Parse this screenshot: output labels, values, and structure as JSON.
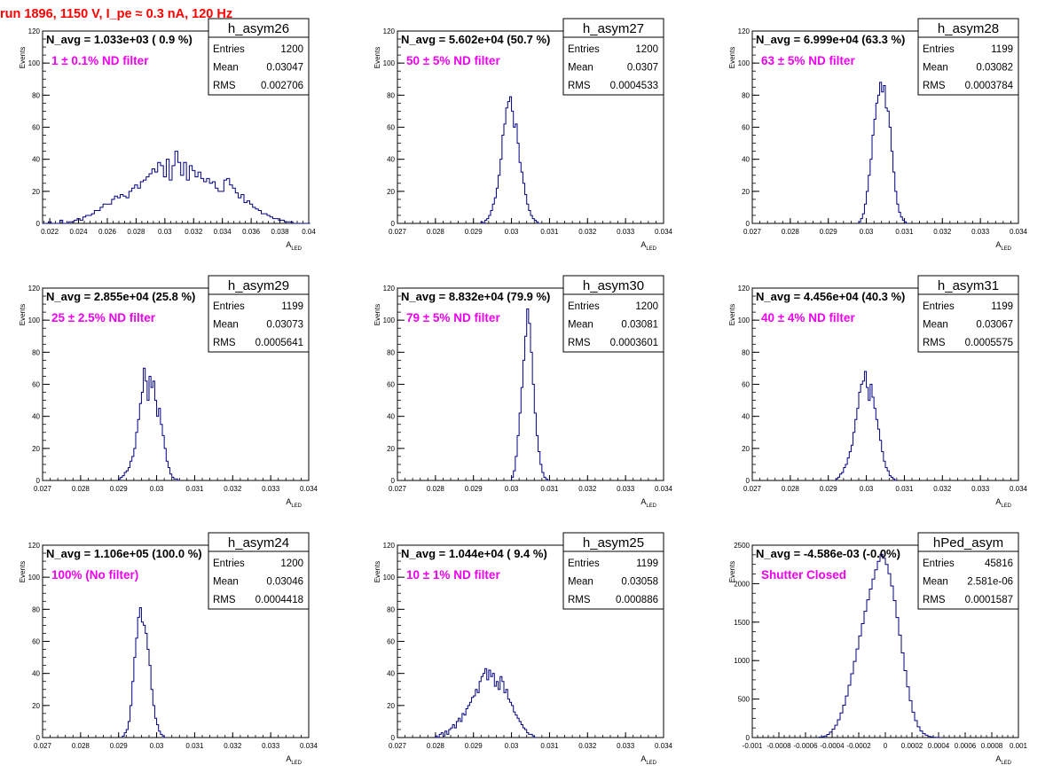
{
  "canvas_title": "run 1896,  1150 V, I_pe ≈ 0.3 nA, 120 Hz",
  "colors": {
    "title": "#ff0000",
    "hist": "#000080",
    "filter_label": "#ee00ee",
    "frame": "#000000"
  },
  "stats_labels": {
    "entries": "Entries",
    "mean": "Mean",
    "rms": "RMS"
  },
  "chart_data": [
    {
      "type": "histogram",
      "name": "h_asym26",
      "xlabel": "A_LED",
      "xlabel_main": "A",
      "xlabel_sub": "LED",
      "ylabel": "Events",
      "xlim": [
        0.0215,
        0.04
      ],
      "ylim": [
        0,
        120
      ],
      "xticks": [
        0.022,
        0.024,
        0.026,
        0.028,
        0.03,
        0.032,
        0.034,
        0.036,
        0.038,
        0.04
      ],
      "xtick_labels": [
        "0.022",
        "0.024",
        "0.026",
        "0.028",
        "0.03",
        "0.032",
        "0.034",
        "0.036",
        "0.038",
        "0.04"
      ],
      "yticks": [
        0,
        20,
        40,
        60,
        80,
        100,
        120
      ],
      "ytick_labels": [
        "0",
        "20",
        "40",
        "60",
        "80",
        "100",
        "120"
      ],
      "navg_text": "N_avg = 1.033e+03 ( 0.9 %)",
      "filter_text": "1 ± 0.1% ND filter",
      "stats": {
        "entries": "1200",
        "mean": "0.03047",
        "rms": "0.002706"
      },
      "bin_start": 0.0215,
      "bin_width": 0.0002,
      "counts": [
        0,
        0,
        1,
        0,
        0,
        0,
        2,
        0,
        0,
        1,
        1,
        2,
        3,
        2,
        4,
        5,
        5,
        6,
        8,
        8,
        10,
        12,
        12,
        12,
        15,
        17,
        16,
        18,
        17,
        16,
        20,
        22,
        24,
        22,
        26,
        27,
        29,
        31,
        34,
        32,
        38,
        36,
        29,
        40,
        27,
        36,
        45,
        38,
        30,
        38,
        27,
        36,
        33,
        29,
        32,
        28,
        26,
        28,
        25,
        26,
        22,
        20,
        20,
        27,
        28,
        24,
        22,
        19,
        16,
        18,
        13,
        14,
        12,
        10,
        9,
        8,
        6,
        6,
        5,
        4,
        3,
        3,
        2,
        2,
        1,
        1,
        1,
        0,
        0,
        0,
        0,
        0,
        0
      ]
    },
    {
      "type": "histogram",
      "name": "h_asym27",
      "xlabel": "A_LED",
      "xlabel_main": "A",
      "xlabel_sub": "LED",
      "ylabel": "Events",
      "xlim": [
        0.027,
        0.034
      ],
      "ylim": [
        0,
        120
      ],
      "xticks": [
        0.027,
        0.028,
        0.029,
        0.03,
        0.031,
        0.032,
        0.033,
        0.034
      ],
      "xtick_labels": [
        "0.027",
        "0.028",
        "0.029",
        "0.03",
        "0.031",
        "0.032",
        "0.033",
        "0.034"
      ],
      "yticks": [
        0,
        20,
        40,
        60,
        80,
        100,
        120
      ],
      "ytick_labels": [
        "0",
        "20",
        "40",
        "60",
        "80",
        "100",
        "120"
      ],
      "navg_text": "N_avg = 5.602e+04 (50.7 %)",
      "filter_text": "50 ± 5% ND filter",
      "stats": {
        "entries": "1200",
        "mean": "0.0307",
        "rms": "0.0004533"
      },
      "bin_start": 0.0292,
      "bin_width": 5e-05,
      "counts": [
        1,
        0,
        2,
        3,
        5,
        8,
        12,
        16,
        22,
        30,
        40,
        55,
        62,
        72,
        76,
        79,
        70,
        60,
        62,
        50,
        38,
        32,
        25,
        18,
        12,
        8,
        5,
        3,
        2,
        1,
        0
      ]
    },
    {
      "type": "histogram",
      "name": "h_asym28",
      "xlabel": "A_LED",
      "xlabel_main": "A",
      "xlabel_sub": "LED",
      "ylabel": "Events",
      "xlim": [
        0.027,
        0.034
      ],
      "ylim": [
        0,
        120
      ],
      "xticks": [
        0.027,
        0.028,
        0.029,
        0.03,
        0.031,
        0.032,
        0.033,
        0.034
      ],
      "xtick_labels": [
        "0.027",
        "0.028",
        "0.029",
        "0.03",
        "0.031",
        "0.032",
        "0.033",
        "0.034"
      ],
      "yticks": [
        0,
        20,
        40,
        60,
        80,
        100,
        120
      ],
      "ytick_labels": [
        "0",
        "20",
        "40",
        "60",
        "80",
        "100",
        "120"
      ],
      "navg_text": "N_avg = 6.999e+04 (63.3 %)",
      "filter_text": "63 ± 5% ND filter",
      "stats": {
        "entries": "1199",
        "mean": "0.03082",
        "rms": "0.0003784"
      },
      "bin_start": 0.0298,
      "bin_width": 5e-05,
      "counts": [
        1,
        3,
        6,
        12,
        20,
        30,
        40,
        55,
        65,
        75,
        80,
        88,
        82,
        86,
        72,
        70,
        60,
        45,
        32,
        20,
        12,
        7,
        4,
        2,
        1,
        0
      ]
    },
    {
      "type": "histogram",
      "name": "h_asym29",
      "xlabel": "A_LED",
      "xlabel_main": "A",
      "xlabel_sub": "LED",
      "ylabel": "Events",
      "xlim": [
        0.027,
        0.034
      ],
      "ylim": [
        0,
        120
      ],
      "xticks": [
        0.027,
        0.028,
        0.029,
        0.03,
        0.031,
        0.032,
        0.033,
        0.034
      ],
      "xtick_labels": [
        "0.027",
        "0.028",
        "0.029",
        "0.03",
        "0.031",
        "0.032",
        "0.033",
        "0.034"
      ],
      "yticks": [
        0,
        20,
        40,
        60,
        80,
        100,
        120
      ],
      "ytick_labels": [
        "0",
        "20",
        "40",
        "60",
        "80",
        "100",
        "120"
      ],
      "navg_text": "N_avg = 2.855e+04 (25.8 %)",
      "filter_text": "25 ± 2.5% ND filter",
      "stats": {
        "entries": "1199",
        "mean": "0.03073",
        "rms": "0.0005641"
      },
      "bin_start": 0.029,
      "bin_width": 5e-05,
      "counts": [
        1,
        2,
        3,
        5,
        6,
        8,
        12,
        15,
        20,
        30,
        38,
        48,
        55,
        70,
        62,
        50,
        65,
        58,
        62,
        50,
        40,
        45,
        35,
        28,
        20,
        12,
        8,
        4,
        2,
        1,
        1,
        0
      ]
    },
    {
      "type": "histogram",
      "name": "h_asym30",
      "xlabel": "A_LED",
      "xlabel_main": "A",
      "xlabel_sub": "LED",
      "ylabel": "Events",
      "xlim": [
        0.027,
        0.034
      ],
      "ylim": [
        0,
        120
      ],
      "xticks": [
        0.027,
        0.028,
        0.029,
        0.03,
        0.031,
        0.032,
        0.033,
        0.034
      ],
      "xtick_labels": [
        "0.027",
        "0.028",
        "0.029",
        "0.03",
        "0.031",
        "0.032",
        "0.033",
        "0.034"
      ],
      "yticks": [
        0,
        20,
        40,
        60,
        80,
        100,
        120
      ],
      "ytick_labels": [
        "0",
        "20",
        "40",
        "60",
        "80",
        "100",
        "120"
      ],
      "navg_text": "N_avg = 8.832e+04 (79.9 %)",
      "filter_text": "79 ± 5% ND filter",
      "stats": {
        "entries": "1200",
        "mean": "0.03081",
        "rms": "0.0003601"
      },
      "bin_start": 0.03,
      "bin_width": 5e-05,
      "counts": [
        2,
        6,
        15,
        28,
        42,
        58,
        75,
        90,
        107,
        98,
        80,
        60,
        42,
        28,
        18,
        10,
        5,
        2,
        1,
        0
      ]
    },
    {
      "type": "histogram",
      "name": "h_asym31",
      "xlabel": "A_LED",
      "xlabel_main": "A",
      "xlabel_sub": "LED",
      "ylabel": "Events",
      "xlim": [
        0.027,
        0.034
      ],
      "ylim": [
        0,
        120
      ],
      "xticks": [
        0.027,
        0.028,
        0.029,
        0.03,
        0.031,
        0.032,
        0.033,
        0.034
      ],
      "xtick_labels": [
        "0.027",
        "0.028",
        "0.029",
        "0.03",
        "0.031",
        "0.032",
        "0.033",
        "0.034"
      ],
      "yticks": [
        0,
        20,
        40,
        60,
        80,
        100,
        120
      ],
      "ytick_labels": [
        "0",
        "20",
        "40",
        "60",
        "80",
        "100",
        "120"
      ],
      "navg_text": "N_avg = 4.456e+04 (40.3 %)",
      "filter_text": "40 ± 4% ND filter",
      "stats": {
        "entries": "1199",
        "mean": "0.03067",
        "rms": "0.0005575"
      },
      "bin_start": 0.0292,
      "bin_width": 5e-05,
      "counts": [
        1,
        2,
        4,
        5,
        8,
        10,
        14,
        18,
        22,
        30,
        38,
        45,
        55,
        60,
        62,
        68,
        58,
        50,
        60,
        52,
        45,
        38,
        32,
        25,
        18,
        12,
        8,
        6,
        3,
        2,
        1,
        0
      ]
    },
    {
      "type": "histogram",
      "name": "h_asym24",
      "xlabel": "A_LED",
      "xlabel_main": "A",
      "xlabel_sub": "LED",
      "ylabel": "Events",
      "xlim": [
        0.027,
        0.034
      ],
      "ylim": [
        0,
        120
      ],
      "xticks": [
        0.027,
        0.028,
        0.029,
        0.03,
        0.031,
        0.032,
        0.033,
        0.034
      ],
      "xtick_labels": [
        "0.027",
        "0.028",
        "0.029",
        "0.03",
        "0.031",
        "0.032",
        "0.033",
        "0.034"
      ],
      "yticks": [
        0,
        20,
        40,
        60,
        80,
        100,
        120
      ],
      "ytick_labels": [
        "0",
        "20",
        "40",
        "60",
        "80",
        "100",
        "120"
      ],
      "navg_text": "N_avg = 1.106e+05 (100.0 %)",
      "filter_text": "100% (No filter)",
      "stats": {
        "entries": "1200",
        "mean": "0.03046",
        "rms": "0.0004418"
      },
      "bin_start": 0.0291,
      "bin_width": 5e-05,
      "counts": [
        1,
        3,
        5,
        10,
        20,
        35,
        50,
        62,
        75,
        81,
        72,
        70,
        65,
        55,
        45,
        30,
        20,
        12,
        8,
        4,
        2,
        1,
        0
      ]
    },
    {
      "type": "histogram",
      "name": "h_asym25",
      "xlabel": "A_LED",
      "xlabel_main": "A",
      "xlabel_sub": "LED",
      "ylabel": "Events",
      "xlim": [
        0.027,
        0.034
      ],
      "ylim": [
        0,
        120
      ],
      "xticks": [
        0.027,
        0.028,
        0.029,
        0.03,
        0.031,
        0.032,
        0.033,
        0.034
      ],
      "xtick_labels": [
        "0.027",
        "0.028",
        "0.029",
        "0.03",
        "0.031",
        "0.032",
        "0.033",
        "0.034"
      ],
      "yticks": [
        0,
        20,
        40,
        60,
        80,
        100,
        120
      ],
      "ytick_labels": [
        "0",
        "20",
        "40",
        "60",
        "80",
        "100",
        "120"
      ],
      "navg_text": "N_avg = 1.044e+04 ( 9.4 %)",
      "filter_text": "10 ± 1% ND filter",
      "stats": {
        "entries": "1199",
        "mean": "0.03058",
        "rms": "0.000886"
      },
      "bin_start": 0.028,
      "bin_width": 5e-05,
      "counts": [
        1,
        0,
        2,
        3,
        1,
        4,
        2,
        5,
        6,
        8,
        6,
        10,
        12,
        10,
        15,
        14,
        18,
        20,
        22,
        25,
        26,
        30,
        28,
        35,
        38,
        40,
        43,
        36,
        42,
        38,
        40,
        32,
        35,
        30,
        38,
        35,
        28,
        30,
        24,
        22,
        20,
        16,
        14,
        12,
        10,
        8,
        6,
        5,
        3,
        2,
        2,
        1,
        0
      ]
    },
    {
      "type": "histogram",
      "name": "hPed_asym",
      "xlabel": "A_LED",
      "xlabel_main": "A",
      "xlabel_sub": "LED",
      "ylabel": "Events",
      "xlim": [
        -0.001,
        0.001
      ],
      "ylim": [
        0,
        2500
      ],
      "xticks": [
        -0.001,
        -0.0008,
        -0.0006,
        -0.0004,
        -0.0002,
        0,
        0.0002,
        0.0004,
        0.0006,
        0.0008,
        0.001
      ],
      "xtick_labels": [
        "-0.001",
        "-0.0008",
        "-0.0006",
        "-0.0004",
        "-0.0002",
        "0",
        "0.0002",
        "0.0004",
        "0.0006",
        "0.0008",
        "0.001"
      ],
      "yticks": [
        0,
        500,
        1000,
        1500,
        2000,
        2500
      ],
      "ytick_labels": [
        "0",
        "500",
        "1000",
        "1500",
        "2000",
        "2500"
      ],
      "navg_text": "N_avg = -4.586e-03 (-0.0%)",
      "filter_text": "Shutter Closed",
      "stats": {
        "entries": "45816",
        "mean": "2.581e-06",
        "rms": "0.0001587"
      },
      "bin_start": -0.0005,
      "bin_width": 2e-05,
      "counts": [
        5,
        10,
        20,
        40,
        70,
        110,
        160,
        230,
        320,
        420,
        540,
        680,
        830,
        990,
        1150,
        1320,
        1480,
        1640,
        1790,
        1930,
        2060,
        2180,
        2290,
        2380,
        2330,
        2250,
        2130,
        1970,
        1780,
        1560,
        1330,
        1100,
        870,
        660,
        480,
        330,
        220,
        140,
        85,
        50,
        30,
        15,
        8,
        3,
        1,
        0
      ]
    }
  ]
}
